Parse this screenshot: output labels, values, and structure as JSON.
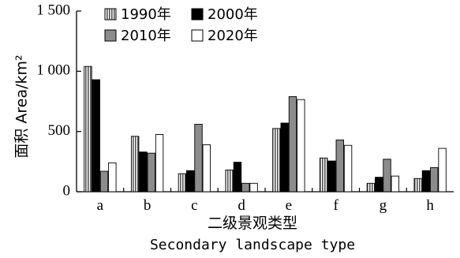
{
  "chart_data": {
    "type": "bar",
    "categories": [
      "a",
      "b",
      "c",
      "d",
      "e",
      "f",
      "g",
      "h"
    ],
    "series": [
      {
        "name": "1990年",
        "style": "hatched",
        "color": "#9a9a9a",
        "values": [
          1040,
          460,
          150,
          180,
          525,
          280,
          70,
          110
        ]
      },
      {
        "name": "2000年",
        "style": "solid",
        "color": "#000000",
        "values": [
          930,
          330,
          175,
          245,
          570,
          255,
          120,
          175
        ]
      },
      {
        "name": "2010年",
        "style": "solid",
        "color": "#8c8c8c",
        "values": [
          170,
          320,
          560,
          70,
          790,
          430,
          270,
          200
        ]
      },
      {
        "name": "2020年",
        "style": "outline",
        "color": "#ffffff",
        "values": [
          240,
          475,
          390,
          70,
          765,
          385,
          130,
          360
        ]
      }
    ],
    "ylim": [
      0,
      1500
    ],
    "yticks": [
      0,
      500,
      1000,
      1500
    ],
    "ytick_labels": [
      "0",
      "500",
      "1 000",
      "1 500"
    ],
    "ylabel": "面积 Area/km²",
    "xlabel_cn": "二级景观类型",
    "xlabel_en": "Secondary landscape type",
    "legend_position": "top-left",
    "grid": false
  }
}
